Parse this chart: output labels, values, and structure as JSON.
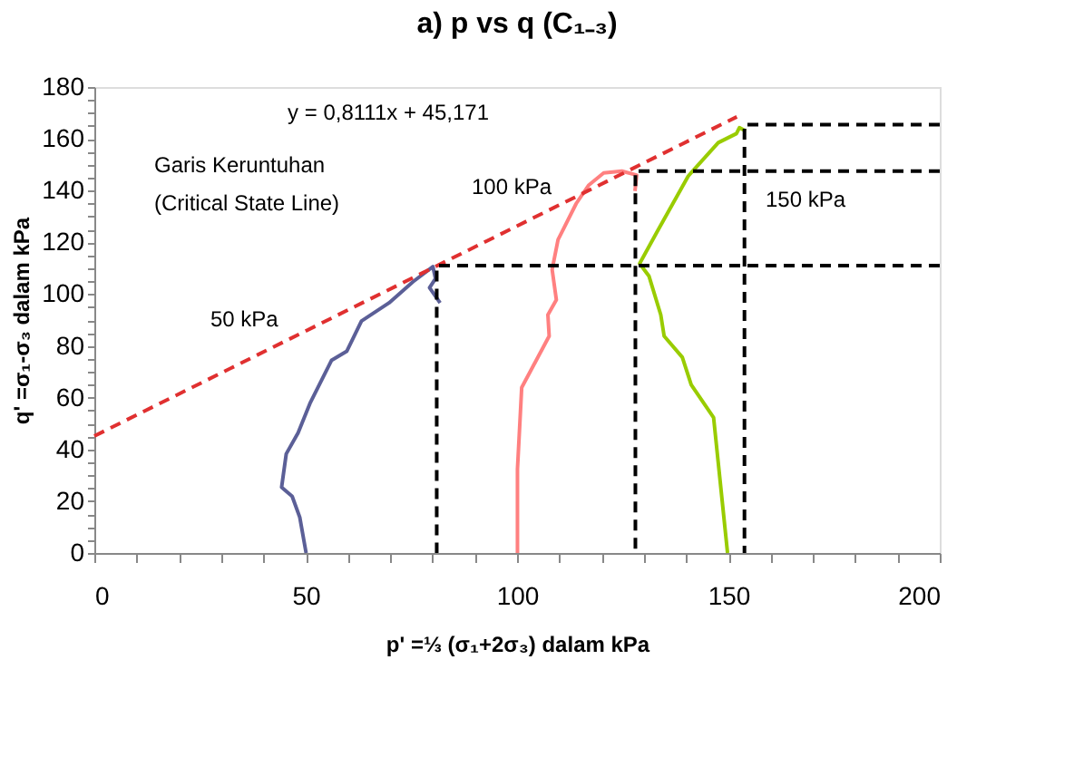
{
  "chart_data": {
    "type": "line",
    "title": "a) p vs q (C₁₋₃)",
    "xlabel": "p' =⅓ (σ₁+2σ₃)    dalam kPa",
    "ylabel": "q' =σ₁-σ₃  dalam kPa",
    "xlim": [
      0,
      200
    ],
    "ylim": [
      0,
      180
    ],
    "xticks": [
      0,
      {
        "value": 10,
        "label": null
      },
      {
        "value": 20,
        "label": null
      },
      {
        "value": 30,
        "label": null
      },
      {
        "value": 40,
        "label": null
      },
      50,
      {
        "value": 60,
        "label": null
      },
      {
        "value": 70,
        "label": null
      },
      {
        "value": 80,
        "label": null
      },
      {
        "value": 90,
        "label": null
      },
      100,
      {
        "value": 110,
        "label": null
      },
      {
        "value": 120,
        "label": null
      },
      {
        "value": 130,
        "label": null
      },
      {
        "value": 140,
        "label": null
      },
      150,
      {
        "value": 160,
        "label": null
      },
      {
        "value": 170,
        "label": null
      },
      {
        "value": 180,
        "label": null
      },
      {
        "value": 190,
        "label": null
      },
      200
    ],
    "yticks": [
      0,
      {
        "value": 5,
        "label": null
      },
      {
        "value": 10,
        "label": null
      },
      {
        "value": 15,
        "label": null
      },
      20,
      {
        "value": 25,
        "label": null
      },
      {
        "value": 30,
        "label": null
      },
      {
        "value": 35,
        "label": null
      },
      40,
      {
        "value": 45,
        "label": null
      },
      {
        "value": 50,
        "label": null
      },
      {
        "value": 55,
        "label": null
      },
      60,
      {
        "value": 65,
        "label": null
      },
      {
        "value": 70,
        "label": null
      },
      {
        "value": 75,
        "label": null
      },
      80,
      {
        "value": 85,
        "label": null
      },
      {
        "value": 90,
        "label": null
      },
      {
        "value": 95,
        "label": null
      },
      100,
      {
        "value": 105,
        "label": null
      },
      {
        "value": 110,
        "label": null
      },
      {
        "value": 115,
        "label": null
      },
      120,
      {
        "value": 125,
        "label": null
      },
      {
        "value": 130,
        "label": null
      },
      {
        "value": 135,
        "label": null
      },
      140,
      {
        "value": 145,
        "label": null
      },
      {
        "value": 150,
        "label": null
      },
      {
        "value": 155,
        "label": null
      },
      160,
      {
        "value": 165,
        "label": null
      },
      {
        "value": 170,
        "label": null
      },
      {
        "value": 175,
        "label": null
      },
      180
    ],
    "grid": false,
    "legend": false,
    "marker": "none",
    "series": [
      {
        "color": "#5b5f97",
        "line_style": "solid",
        "x": [
          50.1,
          48.6,
          46.8,
          44.3,
          45.4,
          48.2,
          51.1,
          56.1,
          59.7,
          63.2,
          69.7,
          75.4,
          80.1,
          80.7,
          79.3,
          81.8
        ],
        "values": [
          0,
          13.8,
          21.9,
          25.4,
          38.3,
          46.4,
          58.1,
          74.4,
          77.9,
          89.6,
          96.6,
          104.8,
          110.6,
          106,
          102.5,
          96.6
        ]
      },
      {
        "color": "#ff8080",
        "line_style": "solid",
        "x": [
          100.1,
          100.1,
          101.1,
          107.6,
          107.3,
          109.3,
          108.3,
          109.7,
          114,
          116.9,
          120.5,
          124.8,
          128.3,
          127.9
        ],
        "values": [
          0,
          32.4,
          63.9,
          83.8,
          92,
          97.8,
          109.5,
          121,
          135,
          142,
          146.8,
          147.5,
          146,
          139.8
        ]
      },
      {
        "color": "#99cc00",
        "line_style": "solid",
        "x": [
          149.8,
          146.5,
          141.2,
          139.1,
          134.8,
          134,
          131.2,
          129,
          133.3,
          140.5,
          147.6,
          151.9,
          152.6,
          154.1
        ],
        "values": [
          0,
          52.3,
          65,
          75.6,
          83.8,
          92,
          107,
          111.8,
          124.6,
          145.6,
          158.5,
          162,
          164.3,
          163
        ]
      },
      {
        "color": "#e03030",
        "line_style": "dashed",
        "x": [
          0,
          152
        ],
        "values": [
          45.2,
          168.5
        ]
      },
      {
        "color": "#000000",
        "line_style": "dashed",
        "x": [
          200,
          81,
          81
        ],
        "values": [
          111,
          111,
          0
        ]
      },
      {
        "color": "#000000",
        "line_style": "dashed",
        "x": [
          200,
          128,
          128
        ],
        "values": [
          147.5,
          147.5,
          0
        ]
      },
      {
        "color": "#000000",
        "line_style": "dashed",
        "x": [
          200,
          153.8,
          153.8
        ],
        "values": [
          165.5,
          165.5,
          0
        ]
      }
    ],
    "annotations": [
      "y = 0,8111x + 45,171",
      "Garis Keruntuhan",
      "(Critical State Line)",
      "50 kPa",
      "100 kPa",
      "150 kPa"
    ]
  }
}
